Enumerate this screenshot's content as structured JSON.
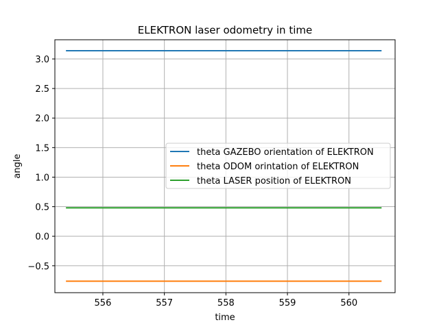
{
  "chart_data": {
    "type": "line",
    "title": "ELEKTRON laser odometry in time",
    "xlabel": "time",
    "ylabel": "angle",
    "xlim": [
      555.22,
      560.75
    ],
    "ylim": [
      -0.955,
      3.325
    ],
    "grid": true,
    "legend_position": "center-right",
    "xticks": [
      556,
      557,
      558,
      559,
      560
    ],
    "xtick_labels": [
      "556",
      "557",
      "558",
      "559",
      "560"
    ],
    "yticks": [
      -0.5,
      0.0,
      0.5,
      1.0,
      1.5,
      2.0,
      2.5,
      3.0
    ],
    "ytick_labels": [
      "−0.5",
      "0.0",
      "0.5",
      "1.0",
      "1.5",
      "2.0",
      "2.5",
      "3.0"
    ],
    "series": [
      {
        "name": "theta GAZEBO orientation of ELEKTRON",
        "color": "#1f77b4",
        "x": [
          555.4,
          560.53
        ],
        "y": [
          3.14,
          3.14
        ]
      },
      {
        "name": "theta ODOM orintation of ELEKTRON",
        "color": "#ff7f0e",
        "x": [
          555.4,
          560.53
        ],
        "y": [
          -0.76,
          -0.76
        ]
      },
      {
        "name": "theta LASER position of ELEKTRON",
        "color": "#2ca02c",
        "x": [
          555.4,
          560.53
        ],
        "y": [
          0.48,
          0.48
        ]
      }
    ]
  }
}
